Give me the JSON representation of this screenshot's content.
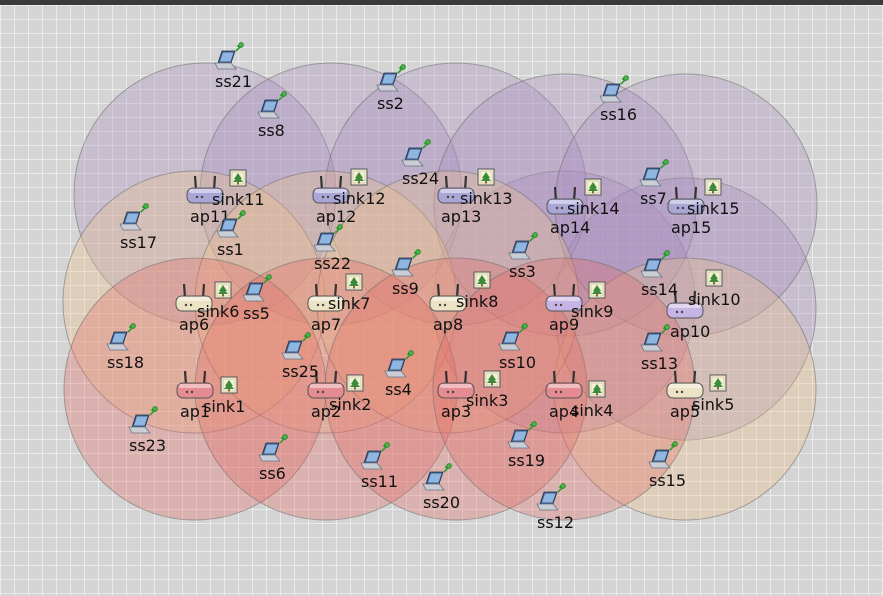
{
  "colors": {
    "background": "#d4d4d4",
    "grid": "#ffffff",
    "range_purple": "#a98bbd",
    "range_orange": "#efc08a",
    "range_red": "#e36a63",
    "range_stroke": "#6d6d6d",
    "ap_purple": "#a9a6d6",
    "ap_beige": "#ece2c4",
    "ap_pink": "#e58b92",
    "ap_lilac": "#c6b4e4"
  },
  "access_points": [
    {
      "label": "ap1",
      "color": "pink",
      "range": "red"
    },
    {
      "label": "ap2",
      "color": "pink",
      "range": "red"
    },
    {
      "label": "ap3",
      "color": "pink",
      "range": "red"
    },
    {
      "label": "ap4",
      "color": "pink",
      "range": "red"
    },
    {
      "label": "ap5",
      "color": "beige",
      "range": "orange"
    },
    {
      "label": "ap6",
      "color": "beige",
      "range": "orange"
    },
    {
      "label": "ap7",
      "color": "beige",
      "range": "orange"
    },
    {
      "label": "ap8",
      "color": "beige",
      "range": "orange"
    },
    {
      "label": "ap9",
      "color": "lilac",
      "range": "purple"
    },
    {
      "label": "ap10",
      "color": "lilac",
      "range": "purple"
    },
    {
      "label": "ap11",
      "color": "purple",
      "range": "purple"
    },
    {
      "label": "ap12",
      "color": "purple",
      "range": "purple"
    },
    {
      "label": "ap13",
      "color": "purple",
      "range": "purple"
    },
    {
      "label": "ap14",
      "color": "purple",
      "range": "purple"
    },
    {
      "label": "ap15",
      "color": "purple",
      "range": "purple"
    }
  ],
  "sinks": [
    "sink1",
    "sink2",
    "sink3",
    "sink4",
    "sink5",
    "sink6",
    "sink7",
    "sink8",
    "sink9",
    "sink10",
    "sink11",
    "sink12",
    "sink13",
    "sink14",
    "sink15"
  ],
  "stations": [
    "ss1",
    "ss2",
    "ss3",
    "ss4",
    "ss5",
    "ss6",
    "ss7",
    "ss8",
    "ss9",
    "ss10",
    "ss11",
    "ss12",
    "ss13",
    "ss14",
    "ss15",
    "ss16",
    "ss17",
    "ss18",
    "ss19",
    "ss20",
    "ss21",
    "ss22",
    "ss23",
    "ss24",
    "ss25"
  ]
}
